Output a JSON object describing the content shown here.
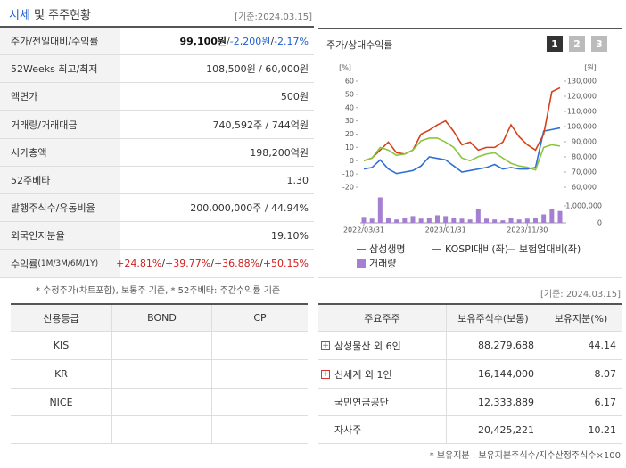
{
  "header": {
    "title": [
      {
        "text": "시세",
        "tone": "blue"
      },
      {
        "text": " 및 주주현황",
        "tone": "plain"
      }
    ],
    "base_date": "[기준:2024.03.15]"
  },
  "quote_table": {
    "rows": [
      {
        "label": [
          {
            "text": "주가/전일대비/수익률",
            "tone": "plain"
          }
        ],
        "value": [
          {
            "text": "99,100원",
            "tone": "bold"
          },
          {
            "text": " / ",
            "tone": "plain"
          },
          {
            "text": "-2,200원",
            "tone": "blue"
          },
          {
            "text": " / ",
            "tone": "plain"
          },
          {
            "text": "-2.17%",
            "tone": "blue"
          }
        ]
      },
      {
        "label": [
          {
            "text": "52Weeks 최고/최저",
            "tone": "plain"
          }
        ],
        "value": [
          {
            "text": "108,500원 / 60,000원",
            "tone": "plain"
          }
        ]
      },
      {
        "label": [
          {
            "text": "액면가",
            "tone": "plain"
          }
        ],
        "value": [
          {
            "text": "500원",
            "tone": "plain"
          }
        ]
      },
      {
        "label": [
          {
            "text": "거래량/거래대금",
            "tone": "plain"
          }
        ],
        "value": [
          {
            "text": "740,592주 / 744억원",
            "tone": "plain"
          }
        ]
      },
      {
        "label": [
          {
            "text": "시가총액",
            "tone": "plain"
          }
        ],
        "value": [
          {
            "text": "198,200억원",
            "tone": "plain"
          }
        ]
      },
      {
        "label": [
          {
            "text": "52주베타",
            "tone": "plain"
          }
        ],
        "value": [
          {
            "text": "1.30",
            "tone": "plain"
          }
        ]
      },
      {
        "label": [
          {
            "text": "발행주식수/유동비율",
            "tone": "plain"
          }
        ],
        "value": [
          {
            "text": "200,000,000주 / 44.94%",
            "tone": "plain"
          }
        ]
      },
      {
        "label": [
          {
            "text": "외국인지분율",
            "tone": "plain"
          }
        ],
        "value": [
          {
            "text": "19.10%",
            "tone": "plain"
          }
        ]
      },
      {
        "label": [
          {
            "text": "수익률 ",
            "tone": "plain"
          },
          {
            "text": "(1M/3M/6M/1Y)",
            "tone": "small"
          }
        ],
        "value": [
          {
            "text": "+24.81%",
            "tone": "red"
          },
          {
            "text": " / ",
            "tone": "plain"
          },
          {
            "text": "+39.77%",
            "tone": "red"
          },
          {
            "text": " / ",
            "tone": "plain"
          },
          {
            "text": "+36.88%",
            "tone": "red"
          },
          {
            "text": " / ",
            "tone": "plain"
          },
          {
            "text": "+50.15%",
            "tone": "red"
          }
        ]
      }
    ]
  },
  "quote_note": "* 수정주가(차트포함), 보통주 기준, * 52주베타: 주간수익률 기준",
  "chart_panel": {
    "title": "주가/상대수익률",
    "buttons": [
      "1",
      "2",
      "3"
    ],
    "active_button": 0,
    "chart_data": {
      "type": "line",
      "categories": [
        "2022/03/31",
        null,
        null,
        null,
        null,
        null,
        null,
        null,
        null,
        null,
        "2023/01/31",
        null,
        null,
        null,
        null,
        null,
        null,
        null,
        null,
        null,
        "2023/11/30",
        null,
        null,
        null,
        null
      ],
      "series": [
        {
          "name": "삼성생명",
          "color": "#2f6fd6",
          "axis": "y2",
          "values": [
            72000,
            73000,
            78000,
            72000,
            69000,
            70000,
            71000,
            74000,
            80000,
            79000,
            78000,
            74000,
            70000,
            71000,
            72000,
            73000,
            75000,
            72000,
            73000,
            72000,
            72000,
            73000,
            97000,
            98000,
            99100
          ]
        },
        {
          "name": "KOSPI대비(좌)",
          "color": "#d4401c",
          "values": [
            0,
            2,
            8,
            14,
            6,
            5,
            8,
            20,
            23,
            27,
            30,
            22,
            12,
            14,
            8,
            10,
            10,
            14,
            27,
            18,
            12,
            8,
            20,
            52,
            55
          ]
        },
        {
          "name": "보험업대비(좌)",
          "color": "#8cc63f",
          "values": [
            0,
            2,
            10,
            8,
            4,
            5,
            8,
            15,
            17,
            17,
            14,
            10,
            2,
            0,
            3,
            5,
            6,
            2,
            -2,
            -4,
            -5,
            -7,
            10,
            12,
            11
          ]
        },
        {
          "name": "거래량",
          "color": "#a57fd1",
          "type": "bar",
          "axis": "volume",
          "values": [
            350000,
            250000,
            1500000,
            300000,
            200000,
            300000,
            400000,
            250000,
            300000,
            450000,
            400000,
            300000,
            250000,
            200000,
            800000,
            250000,
            200000,
            150000,
            300000,
            200000,
            250000,
            300000,
            500000,
            800000,
            700000
          ]
        }
      ],
      "ylabel": "[%]",
      "y2label": "[원]",
      "ylim": [
        -20,
        60
      ],
      "yticks": [
        -20,
        -10,
        0,
        10,
        20,
        30,
        40,
        50,
        60
      ],
      "y2lim": [
        60000,
        130000
      ],
      "y2ticks": [
        {
          "value": 60000,
          "label": "60,000"
        },
        {
          "value": 70000,
          "label": "70,000"
        },
        {
          "value": 80000,
          "label": "80,000"
        },
        {
          "value": 90000,
          "label": "90,000"
        },
        {
          "value": 100000,
          "label": "100,000"
        },
        {
          "value": 110000,
          "label": "110,000"
        },
        {
          "value": 120000,
          "label": "120,000"
        },
        {
          "value": 130000,
          "label": "130,000"
        }
      ],
      "volume_lim": [
        0,
        1000000
      ],
      "volume_ticks": [
        0,
        {
          "value": 1000000,
          "label": "1,000,000"
        }
      ]
    }
  },
  "base_date_2": "[기준: 2024.03.15]",
  "credit_table": {
    "headers": [
      "신용등급",
      "BOND",
      "CP"
    ],
    "rows": [
      [
        "KIS"
      ],
      [
        "KR"
      ],
      [
        "NICE"
      ]
    ]
  },
  "holders_table": {
    "headers": [
      "주요주주",
      "보유주식수(보통)",
      "보유지분(%)"
    ],
    "rows": [
      {
        "name": "삼성물산 외 6인",
        "shares": "88,279,688",
        "ratio": "44.14",
        "expandable": true
      },
      {
        "name": "신세계 외 1인",
        "shares": "16,144,000",
        "ratio": "8.07",
        "expandable": true
      },
      {
        "name": "국민연금공단",
        "shares": "12,333,889",
        "ratio": "6.17",
        "expandable": false
      },
      {
        "name": "자사주",
        "shares": "20,425,221",
        "ratio": "10.21",
        "expandable": false
      }
    ]
  },
  "holders_note": "* 보유지분 : 보유지분주식수/지수산정주식수×100"
}
